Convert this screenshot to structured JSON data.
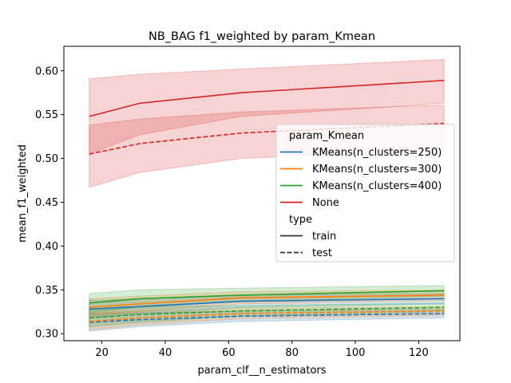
{
  "chart_data": {
    "type": "line",
    "title": "NB_BAG f1_weighted by param_Kmean",
    "xlabel": "param_clf__n_estimators",
    "ylabel": "mean_f1_weighted",
    "xlim": [
      8,
      133
    ],
    "ylim": [
      0.292,
      0.628
    ],
    "xticks": [
      20,
      40,
      60,
      80,
      100,
      120
    ],
    "yticks": [
      0.3,
      0.35,
      0.4,
      0.45,
      0.5,
      0.55,
      0.6
    ],
    "x": [
      16,
      32,
      64,
      128
    ],
    "legend_placement": "center-right",
    "hue_title": "param_Kmean",
    "style_title": "type",
    "styles": [
      {
        "key": "train",
        "label": "train",
        "dash": "solid"
      },
      {
        "key": "test",
        "label": "test",
        "dash": "dashed"
      }
    ],
    "series": [
      {
        "name": "KMeans(n_clusters=250)",
        "color": "#1f77b4",
        "train": {
          "values": [
            0.328,
            0.331,
            0.337,
            0.34
          ],
          "lower": [
            0.318,
            0.322,
            0.33,
            0.334
          ],
          "upper": [
            0.338,
            0.34,
            0.344,
            0.346
          ]
        },
        "test": {
          "values": [
            0.313,
            0.316,
            0.32,
            0.323
          ],
          "lower": [
            0.303,
            0.308,
            0.314,
            0.318
          ],
          "upper": [
            0.323,
            0.324,
            0.326,
            0.328
          ]
        }
      },
      {
        "name": "KMeans(n_clusters=300)",
        "color": "#ff7f0e",
        "train": {
          "values": [
            0.33,
            0.334,
            0.341,
            0.344
          ],
          "lower": [
            0.32,
            0.325,
            0.334,
            0.338
          ],
          "upper": [
            0.34,
            0.343,
            0.348,
            0.35
          ]
        },
        "test": {
          "values": [
            0.314,
            0.318,
            0.323,
            0.326
          ],
          "lower": [
            0.304,
            0.31,
            0.317,
            0.321
          ],
          "upper": [
            0.324,
            0.326,
            0.329,
            0.331
          ]
        }
      },
      {
        "name": "KMeans(n_clusters=400)",
        "color": "#2ca02c",
        "train": {
          "values": [
            0.335,
            0.34,
            0.344,
            0.349
          ],
          "lower": [
            0.324,
            0.33,
            0.337,
            0.343
          ],
          "upper": [
            0.346,
            0.35,
            0.352,
            0.355
          ]
        },
        "test": {
          "values": [
            0.318,
            0.322,
            0.326,
            0.33
          ],
          "lower": [
            0.308,
            0.313,
            0.32,
            0.325
          ],
          "upper": [
            0.328,
            0.331,
            0.332,
            0.335
          ]
        }
      },
      {
        "name": "None",
        "color": "#d62728",
        "train": {
          "values": [
            0.548,
            0.563,
            0.575,
            0.589
          ],
          "lower": [
            0.505,
            0.527,
            0.548,
            0.563
          ],
          "upper": [
            0.591,
            0.596,
            0.602,
            0.613
          ]
        },
        "test": {
          "values": [
            0.505,
            0.517,
            0.529,
            0.54
          ],
          "lower": [
            0.467,
            0.484,
            0.5,
            0.51
          ],
          "upper": [
            0.538,
            0.545,
            0.553,
            0.561
          ]
        }
      }
    ]
  }
}
